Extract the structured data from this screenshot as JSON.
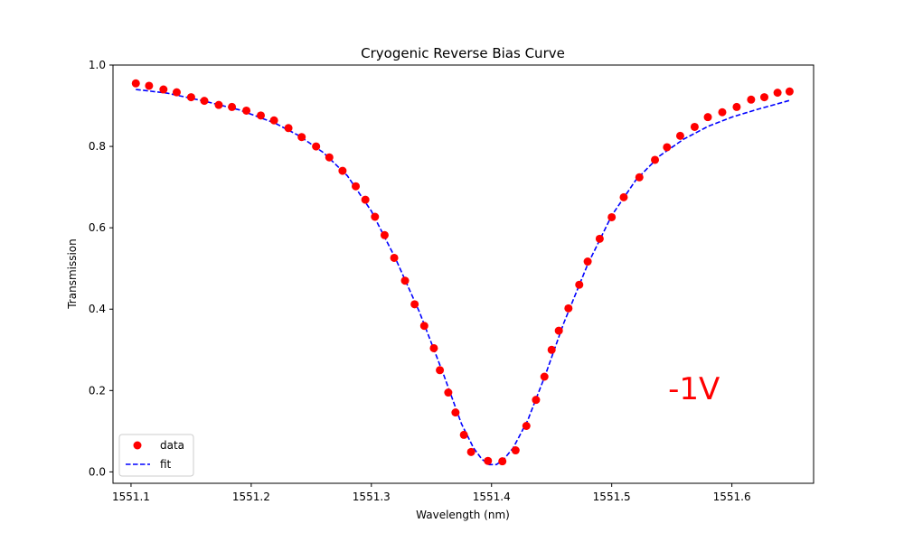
{
  "chart_data": {
    "type": "scatter",
    "title": "Cryogenic Reverse Bias Curve",
    "xlabel": "Wavelength (nm)",
    "ylabel": "Transmission",
    "xlim": [
      1551.085,
      1551.668
    ],
    "ylim": [
      -0.028,
      1.0
    ],
    "xticks": [
      1551.1,
      1551.2,
      1551.3,
      1551.4,
      1551.5,
      1551.6
    ],
    "xtick_labels": [
      "1551.1",
      "1551.2",
      "1551.3",
      "1551.4",
      "1551.5",
      "1551.6"
    ],
    "yticks": [
      0.0,
      0.2,
      0.4,
      0.6,
      0.8,
      1.0
    ],
    "ytick_labels": [
      "0.0",
      "0.2",
      "0.4",
      "0.6",
      "0.8",
      "1.0"
    ],
    "grid": false,
    "legend_position": "lower-left",
    "annotation": {
      "text": "-1V",
      "x": 1551.547,
      "y": 0.205,
      "color": "#ff0000"
    },
    "series": [
      {
        "name": "data",
        "kind": "scatter",
        "color": "#ff0000",
        "x": [
          1551.104,
          1551.115,
          1551.127,
          1551.138,
          1551.15,
          1551.161,
          1551.173,
          1551.184,
          1551.196,
          1551.208,
          1551.219,
          1551.231,
          1551.242,
          1551.254,
          1551.265,
          1551.276,
          1551.287,
          1551.295,
          1551.303,
          1551.311,
          1551.319,
          1551.328,
          1551.336,
          1551.344,
          1551.352,
          1551.357,
          1551.364,
          1551.37,
          1551.377,
          1551.383,
          1551.397,
          1551.409,
          1551.42,
          1551.429,
          1551.437,
          1551.444,
          1551.45,
          1551.456,
          1551.464,
          1551.473,
          1551.48,
          1551.49,
          1551.5,
          1551.51,
          1551.523,
          1551.536,
          1551.546,
          1551.557,
          1551.569,
          1551.58,
          1551.592,
          1551.604,
          1551.616,
          1551.627,
          1551.638,
          1551.648
        ],
        "y": [
          0.955,
          0.949,
          0.94,
          0.933,
          0.921,
          0.912,
          0.902,
          0.897,
          0.888,
          0.876,
          0.864,
          0.845,
          0.823,
          0.8,
          0.773,
          0.74,
          0.702,
          0.669,
          0.627,
          0.582,
          0.526,
          0.47,
          0.412,
          0.359,
          0.304,
          0.25,
          0.195,
          0.146,
          0.091,
          0.049,
          0.027,
          0.026,
          0.053,
          0.113,
          0.177,
          0.234,
          0.3,
          0.347,
          0.402,
          0.46,
          0.517,
          0.573,
          0.626,
          0.675,
          0.724,
          0.767,
          0.798,
          0.826,
          0.848,
          0.872,
          0.884,
          0.897,
          0.915,
          0.921,
          0.932,
          0.935
        ]
      },
      {
        "name": "fit",
        "kind": "line",
        "style": "dashed",
        "color": "#0000ff",
        "x": [
          1551.104,
          1551.13,
          1551.16,
          1551.19,
          1551.22,
          1551.24,
          1551.26,
          1551.28,
          1551.3,
          1551.32,
          1551.34,
          1551.36,
          1551.375,
          1551.385,
          1551.392,
          1551.398,
          1551.404,
          1551.41,
          1551.418,
          1551.43,
          1551.445,
          1551.46,
          1551.48,
          1551.5,
          1551.52,
          1551.54,
          1551.56,
          1551.58,
          1551.6,
          1551.62,
          1551.648
        ],
        "y": [
          0.94,
          0.931,
          0.912,
          0.89,
          0.857,
          0.826,
          0.785,
          0.728,
          0.641,
          0.525,
          0.393,
          0.24,
          0.118,
          0.059,
          0.031,
          0.018,
          0.018,
          0.03,
          0.059,
          0.126,
          0.24,
          0.365,
          0.51,
          0.63,
          0.717,
          0.777,
          0.818,
          0.849,
          0.872,
          0.89,
          0.913
        ]
      }
    ]
  }
}
